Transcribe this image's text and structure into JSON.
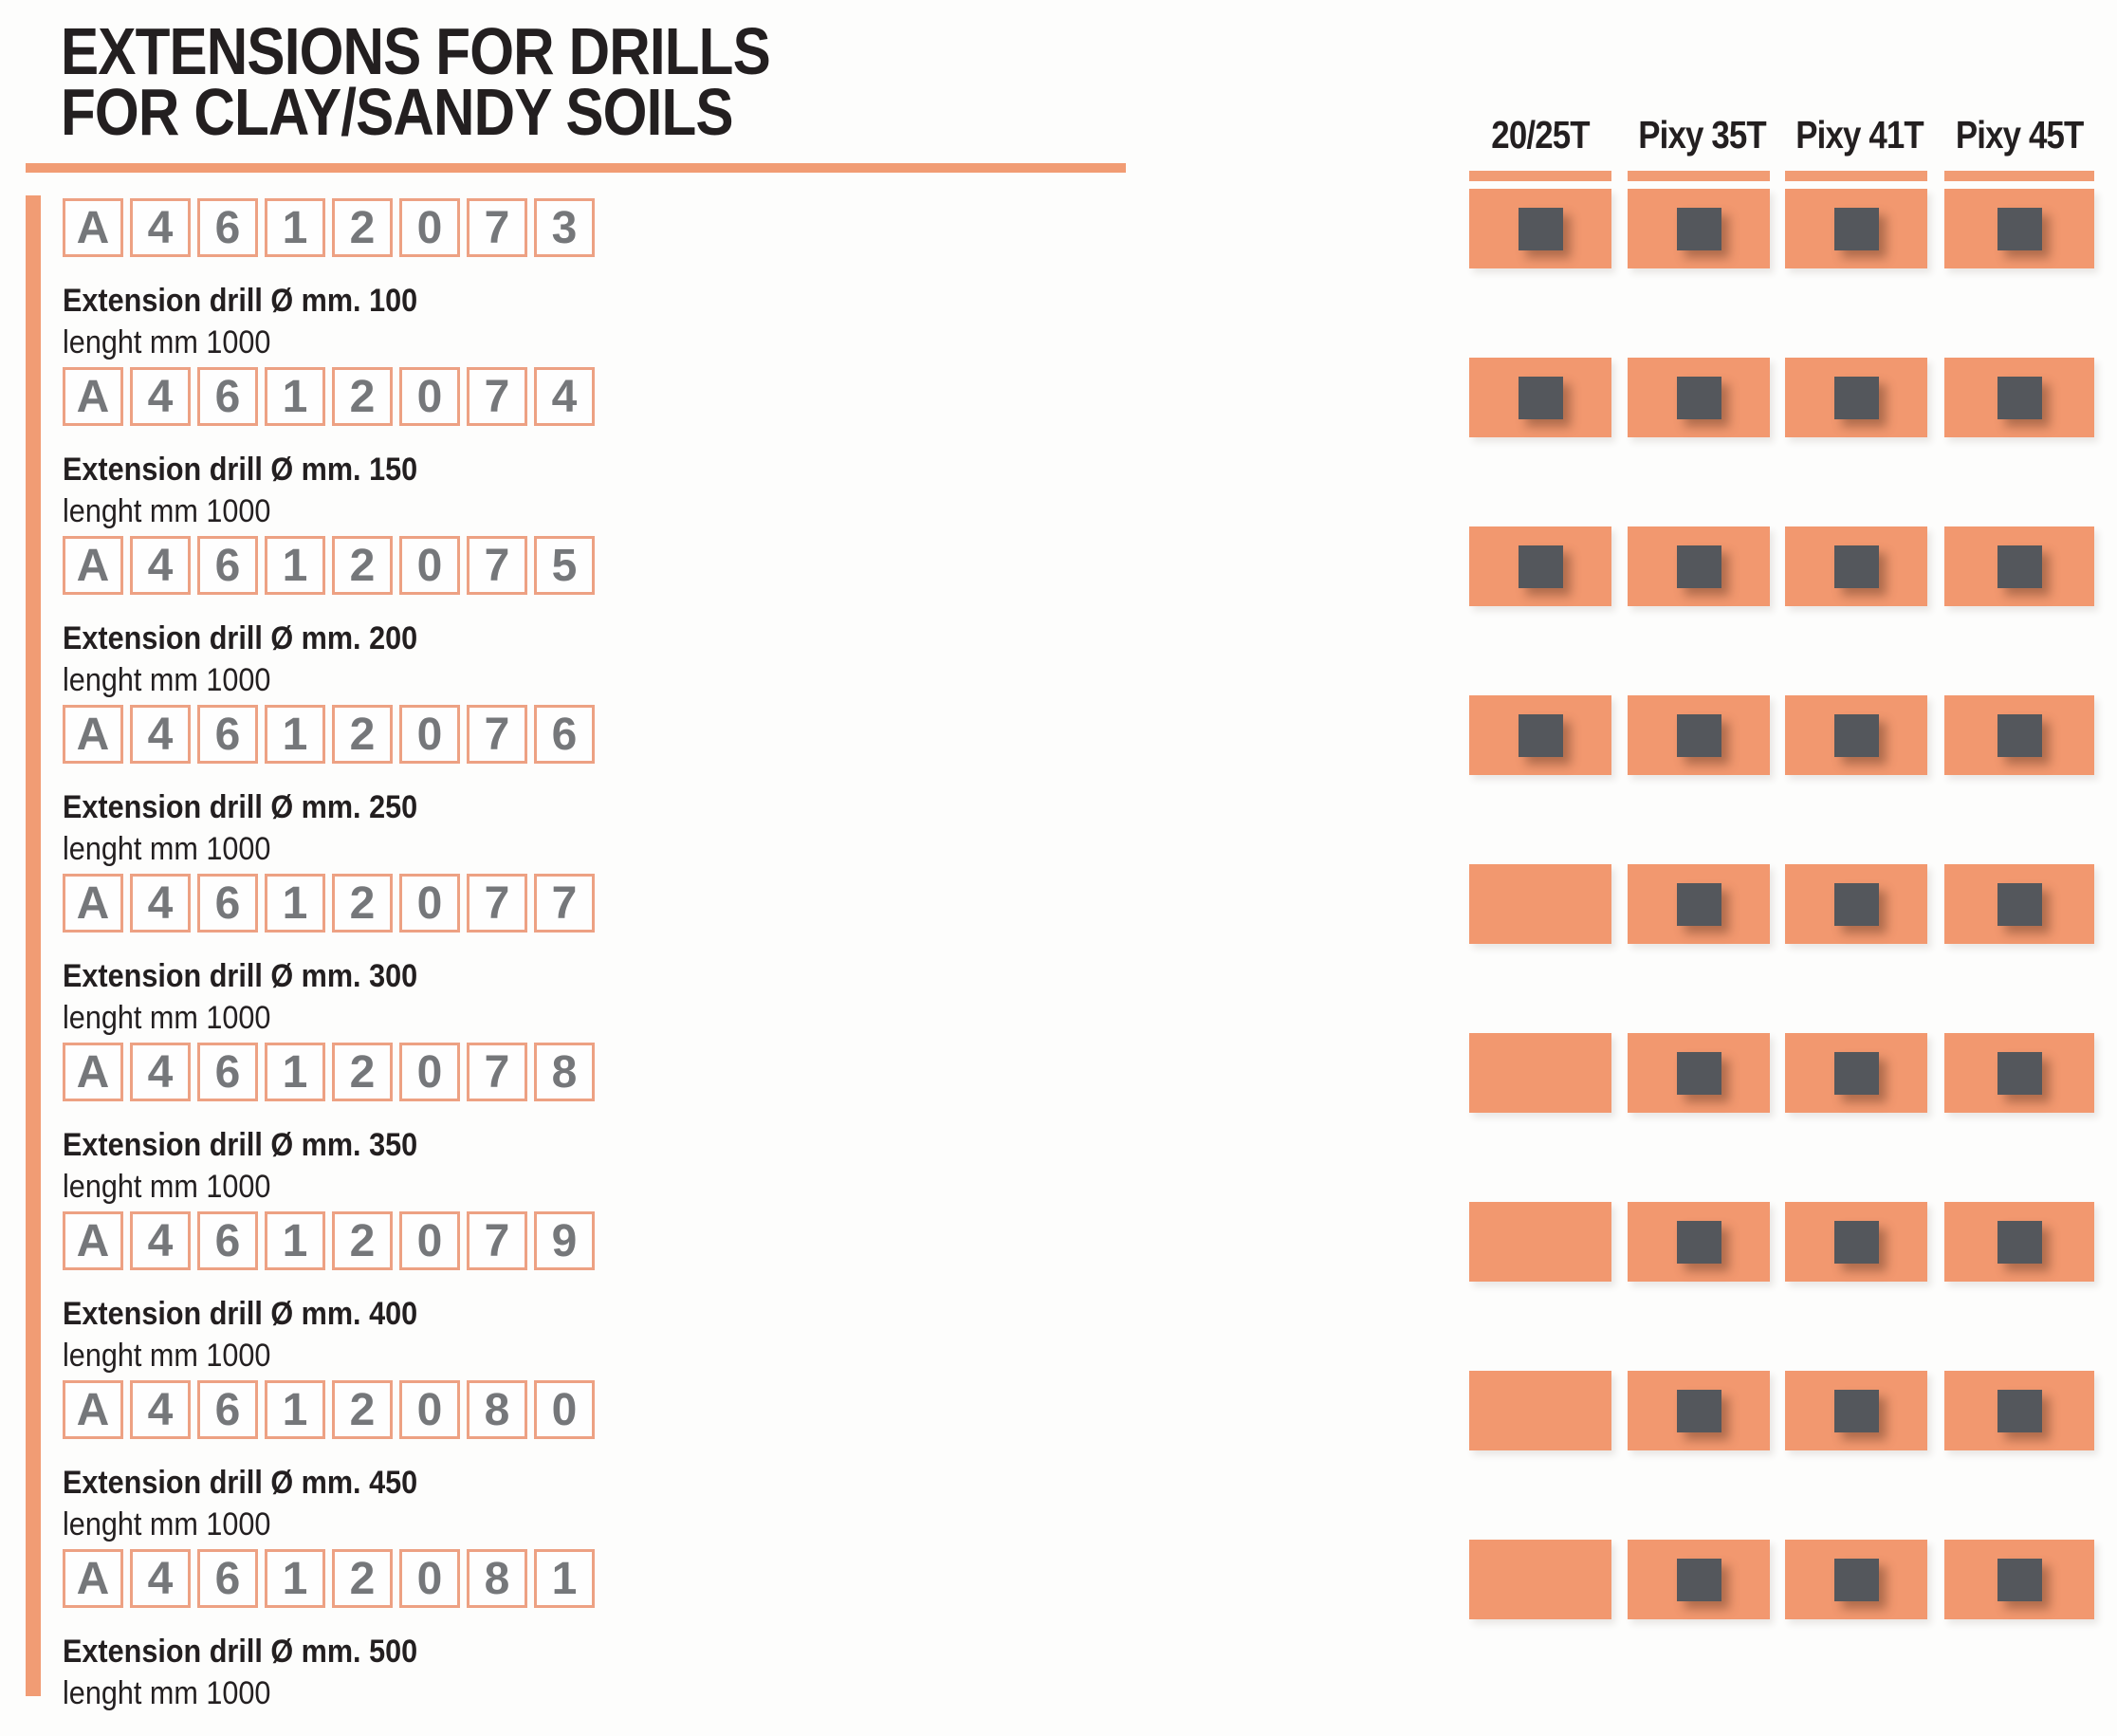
{
  "title": {
    "line1": "EXTENSIONS FOR DRILLS",
    "line2": "FOR CLAY/SANDY SOILS"
  },
  "columns": [
    {
      "label": "20/25T"
    },
    {
      "label": "Pixy 35T"
    },
    {
      "label": "Pixy 41T"
    },
    {
      "label": "Pixy 45T"
    }
  ],
  "rows": [
    {
      "code": [
        "A",
        "4",
        "6",
        "1",
        "2",
        "0",
        "7",
        "3"
      ],
      "description": "Extension drill Ø mm. 100",
      "length_note": "lenght mm 1000",
      "compatibility": [
        true,
        true,
        true,
        true
      ]
    },
    {
      "code": [
        "A",
        "4",
        "6",
        "1",
        "2",
        "0",
        "7",
        "4"
      ],
      "description": "Extension drill Ø mm. 150",
      "length_note": "lenght mm 1000",
      "compatibility": [
        true,
        true,
        true,
        true
      ]
    },
    {
      "code": [
        "A",
        "4",
        "6",
        "1",
        "2",
        "0",
        "7",
        "5"
      ],
      "description": "Extension drill Ø mm. 200",
      "length_note": "lenght mm 1000",
      "compatibility": [
        true,
        true,
        true,
        true
      ]
    },
    {
      "code": [
        "A",
        "4",
        "6",
        "1",
        "2",
        "0",
        "7",
        "6"
      ],
      "description": "Extension drill Ø mm. 250",
      "length_note": "lenght mm 1000",
      "compatibility": [
        true,
        true,
        true,
        true
      ]
    },
    {
      "code": [
        "A",
        "4",
        "6",
        "1",
        "2",
        "0",
        "7",
        "7"
      ],
      "description": "Extension drill Ø mm. 300",
      "length_note": "lenght mm 1000",
      "compatibility": [
        false,
        true,
        true,
        true
      ]
    },
    {
      "code": [
        "A",
        "4",
        "6",
        "1",
        "2",
        "0",
        "7",
        "8"
      ],
      "description": "Extension drill Ø mm. 350",
      "length_note": "lenght mm 1000",
      "compatibility": [
        false,
        true,
        true,
        true
      ]
    },
    {
      "code": [
        "A",
        "4",
        "6",
        "1",
        "2",
        "0",
        "7",
        "9"
      ],
      "description": "Extension drill Ø mm. 400",
      "length_note": "lenght mm 1000",
      "compatibility": [
        false,
        true,
        true,
        true
      ]
    },
    {
      "code": [
        "A",
        "4",
        "6",
        "1",
        "2",
        "0",
        "8",
        "0"
      ],
      "description": "Extension drill Ø mm. 450",
      "length_note": "lenght mm 1000",
      "compatibility": [
        false,
        true,
        true,
        true
      ]
    },
    {
      "code": [
        "A",
        "4",
        "6",
        "1",
        "2",
        "0",
        "8",
        "1"
      ],
      "description": "Extension drill Ø mm. 500",
      "length_note": "lenght mm 1000",
      "compatibility": [
        false,
        true,
        true,
        true
      ]
    }
  ],
  "colors": {
    "orange": "#f2986f",
    "rule_orange": "#f19c74",
    "box_border_orange": "#eda183",
    "mark_square": "#54575c",
    "code_text_gray": "#75777a",
    "text_black": "#231f20"
  }
}
